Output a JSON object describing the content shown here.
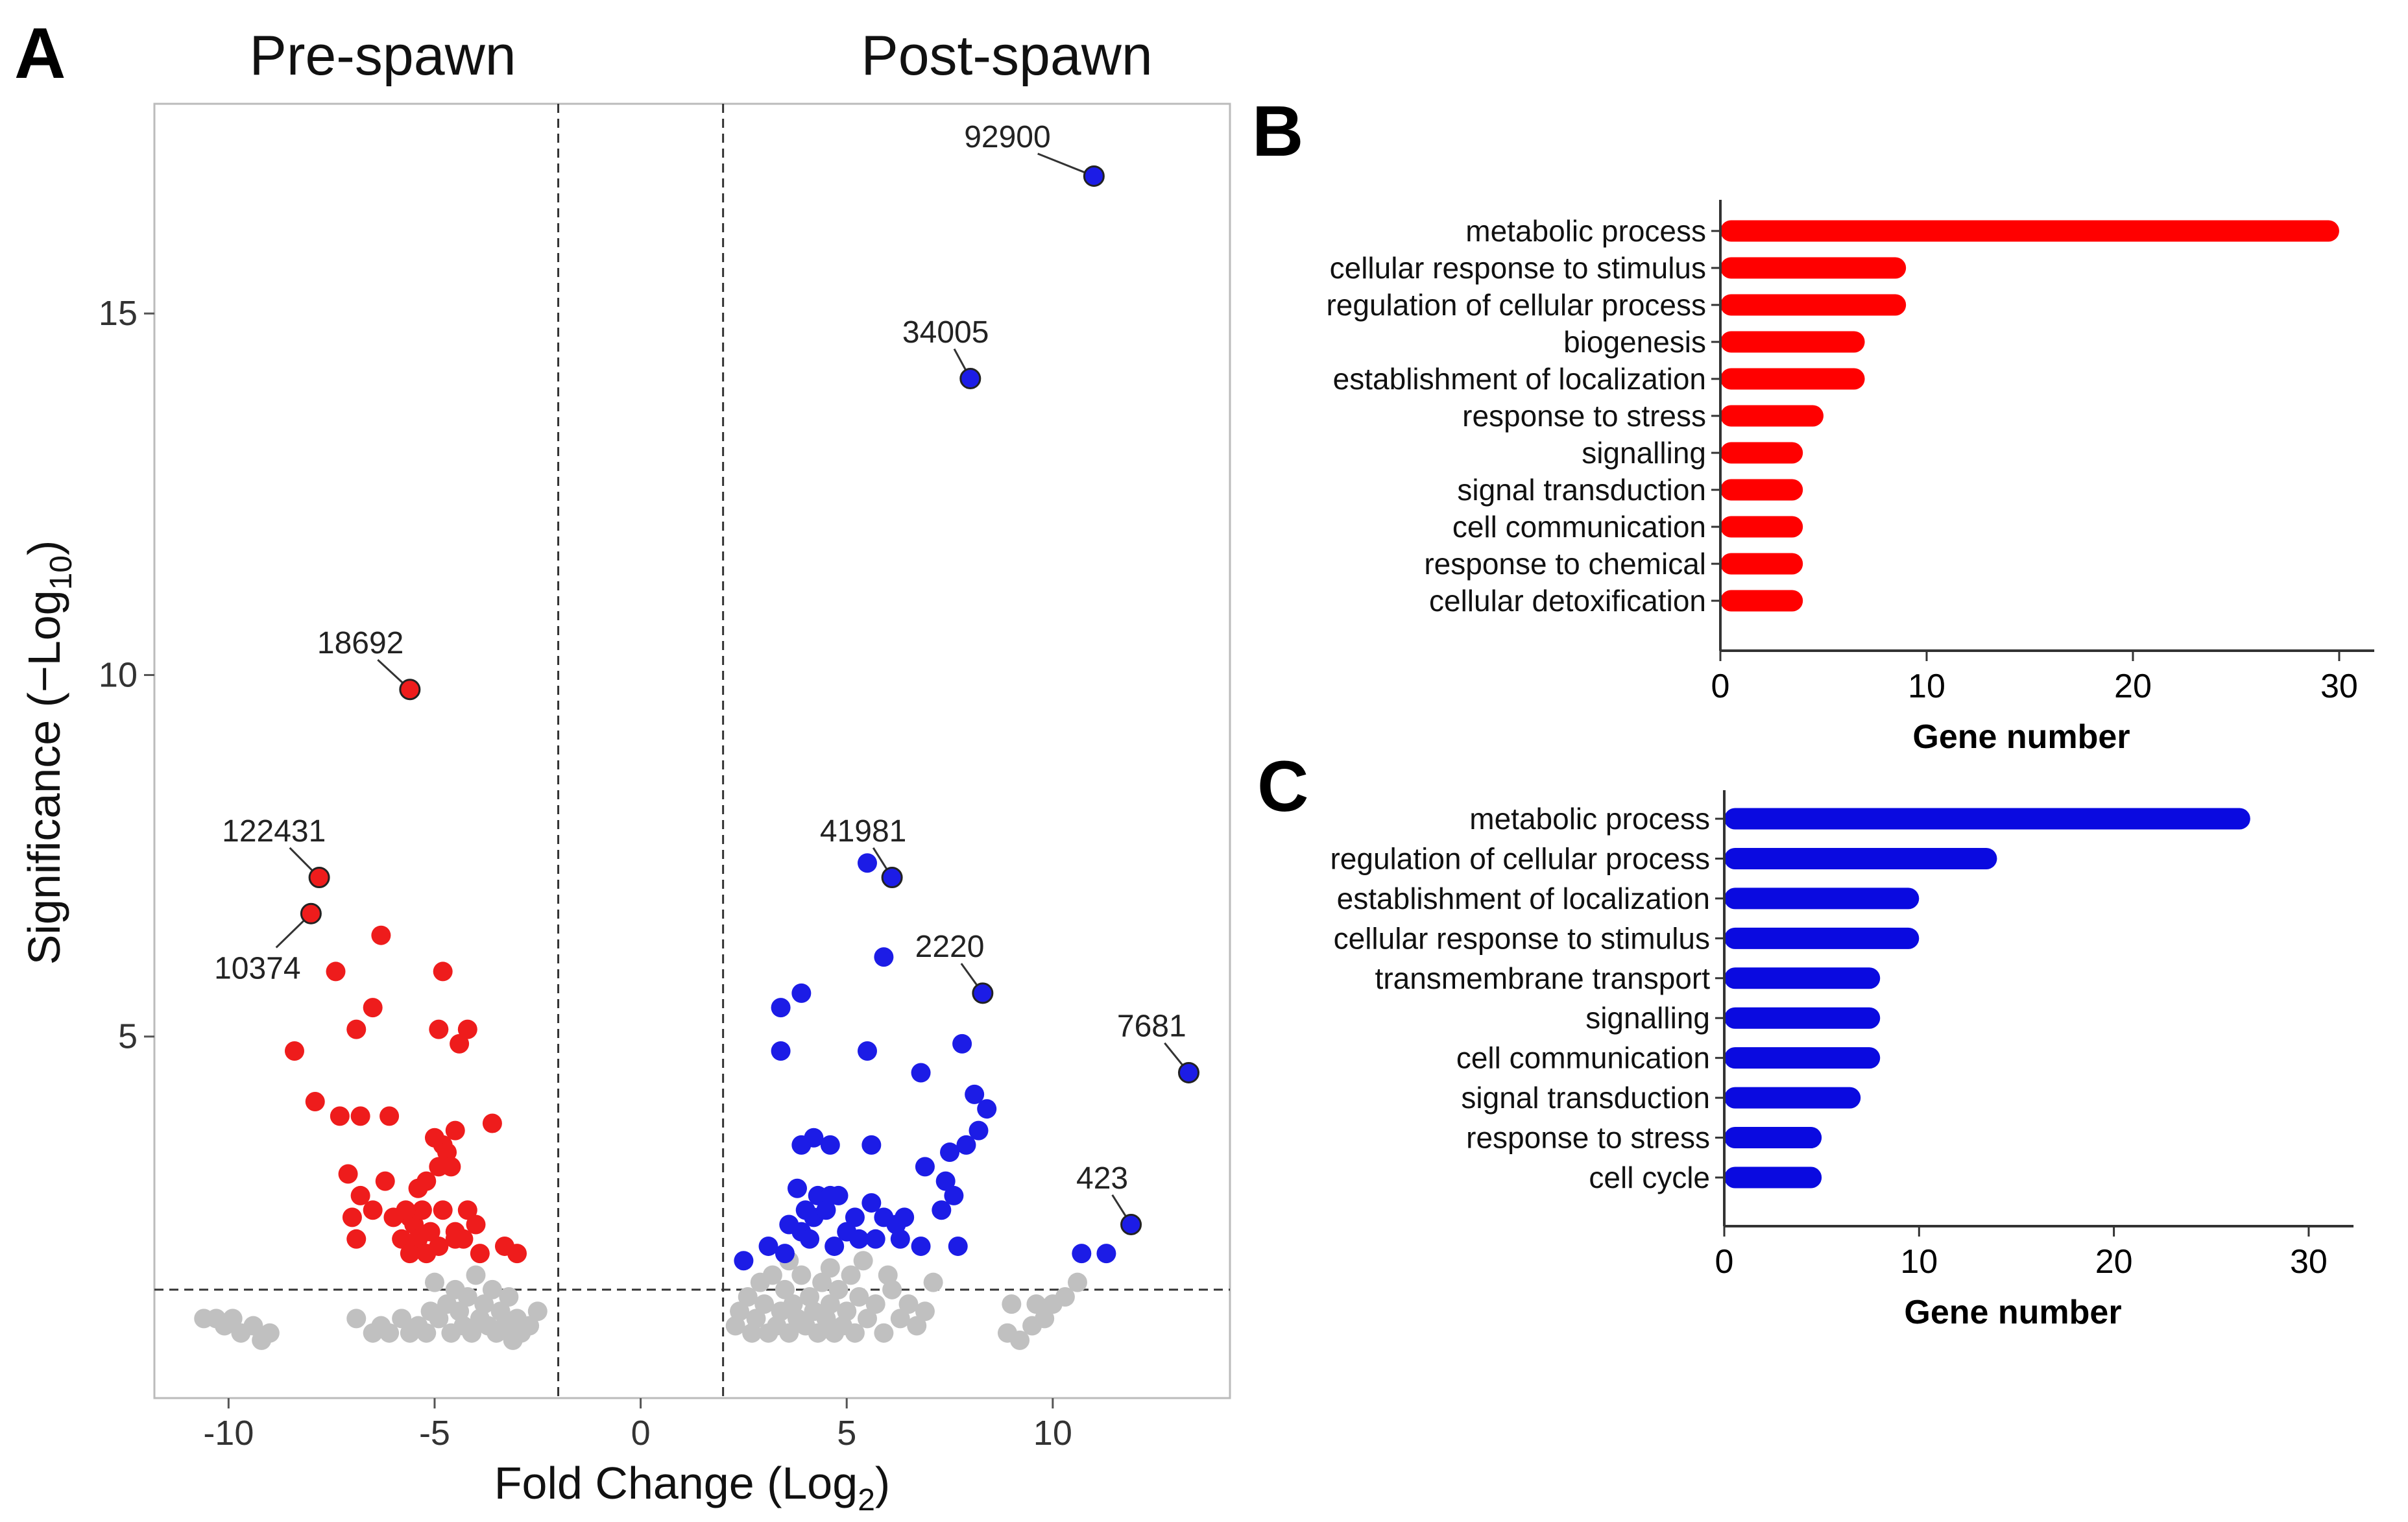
{
  "panel_labels": {
    "a": "A",
    "b": "B",
    "c": "C"
  },
  "colors": {
    "pre": "#ee1c1c",
    "post": "#1c1ce6",
    "ns": "#c0c0c0",
    "barB": "#ff0000",
    "barC": "#0a0ae0"
  },
  "chart_data": [
    {
      "type": "scatter",
      "panel": "A",
      "group_labels": {
        "left": "Pre-spawn",
        "right": "Post-spawn"
      },
      "xlabel_main": "Fold Change (Log",
      "xlabel_sub": "2",
      "xlabel_end": ")",
      "ylabel_main": "Significance (−Log",
      "ylabel_sub": "10",
      "ylabel_end": ")",
      "xlim": [
        -11.8,
        14.3
      ],
      "ylim": [
        0,
        17.9
      ],
      "xticks": [
        -10,
        -5,
        0,
        5,
        10
      ],
      "xtick_labels": [
        "-10",
        "-5",
        "0",
        "5",
        "10"
      ],
      "yticks": [
        5,
        10,
        15
      ],
      "ytick_labels": [
        "5",
        "10",
        "15"
      ],
      "fc_thresholds": [
        -2,
        2
      ],
      "sig_threshold": 1.5,
      "labeled_points": [
        {
          "id": "92900",
          "x": 11.0,
          "y": 16.9,
          "group": "post",
          "tx": 8.9,
          "ty": 17.3,
          "anchor": "middle"
        },
        {
          "id": "34005",
          "x": 8.0,
          "y": 14.1,
          "group": "post",
          "tx": 7.4,
          "ty": 14.6,
          "anchor": "middle"
        },
        {
          "id": "18692",
          "x": -5.6,
          "y": 9.8,
          "group": "pre",
          "tx": -6.8,
          "ty": 10.3,
          "anchor": "middle"
        },
        {
          "id": "122431",
          "x": -7.8,
          "y": 7.2,
          "group": "pre",
          "tx": -8.9,
          "ty": 7.7,
          "anchor": "middle"
        },
        {
          "id": "10374",
          "x": -8.0,
          "y": 6.7,
          "group": "pre",
          "tx": -9.3,
          "ty": 5.8,
          "anchor": "middle"
        },
        {
          "id": "41981",
          "x": 6.1,
          "y": 7.2,
          "group": "post",
          "tx": 5.4,
          "ty": 7.7,
          "anchor": "middle"
        },
        {
          "id": "2220",
          "x": 8.3,
          "y": 5.6,
          "group": "post",
          "tx": 7.5,
          "ty": 6.1,
          "anchor": "middle"
        },
        {
          "id": "7681",
          "x": 13.3,
          "y": 4.5,
          "group": "post",
          "tx": 12.4,
          "ty": 5.0,
          "anchor": "middle"
        },
        {
          "id": "423",
          "x": 11.9,
          "y": 2.4,
          "group": "post",
          "tx": 11.2,
          "ty": 2.9,
          "anchor": "middle"
        }
      ],
      "pre_points": [
        [
          -8.4,
          4.8
        ],
        [
          -7.9,
          4.1
        ],
        [
          -7.4,
          5.9
        ],
        [
          -6.9,
          5.1
        ],
        [
          -6.3,
          6.4
        ],
        [
          -6.5,
          5.4
        ],
        [
          -7.3,
          3.9
        ],
        [
          -6.8,
          3.9
        ],
        [
          -6.1,
          3.9
        ],
        [
          -7.1,
          3.1
        ],
        [
          -6.8,
          2.8
        ],
        [
          -6.5,
          2.6
        ],
        [
          -6.2,
          3.0
        ],
        [
          -7.0,
          2.5
        ],
        [
          -6.9,
          2.2
        ],
        [
          -5.6,
          2.5
        ],
        [
          -5.4,
          2.9
        ],
        [
          -5.0,
          3.6
        ],
        [
          -4.8,
          3.5
        ],
        [
          -4.7,
          3.4
        ],
        [
          -4.6,
          3.2
        ],
        [
          -4.5,
          3.7
        ],
        [
          -4.9,
          3.2
        ],
        [
          -4.8,
          5.9
        ],
        [
          -4.9,
          5.1
        ],
        [
          -4.4,
          4.9
        ],
        [
          -4.2,
          5.1
        ],
        [
          -3.6,
          3.8
        ],
        [
          -5.2,
          3.0
        ],
        [
          -5.5,
          2.4
        ],
        [
          -5.3,
          2.6
        ],
        [
          -5.7,
          2.6
        ],
        [
          -5.4,
          2.2
        ],
        [
          -5.1,
          2.3
        ],
        [
          -4.8,
          2.6
        ],
        [
          -4.5,
          2.3
        ],
        [
          -4.3,
          2.2
        ],
        [
          -4.2,
          2.6
        ],
        [
          -4.5,
          2.2
        ],
        [
          -3.9,
          2.0
        ],
        [
          -3.3,
          2.1
        ],
        [
          -3.0,
          2.0
        ],
        [
          -5.8,
          2.2
        ],
        [
          -6.0,
          2.5
        ],
        [
          -4.9,
          2.1
        ],
        [
          -5.6,
          2.0
        ],
        [
          -4.0,
          2.4
        ],
        [
          -5.2,
          2.0
        ]
      ],
      "post_points": [
        [
          3.4,
          5.4
        ],
        [
          3.9,
          5.6
        ],
        [
          3.4,
          4.8
        ],
        [
          5.9,
          6.1
        ],
        [
          5.5,
          7.4
        ],
        [
          5.5,
          4.8
        ],
        [
          6.8,
          4.5
        ],
        [
          7.8,
          4.9
        ],
        [
          8.1,
          4.2
        ],
        [
          8.4,
          4.0
        ],
        [
          6.9,
          3.2
        ],
        [
          7.5,
          3.4
        ],
        [
          7.4,
          3.0
        ],
        [
          7.9,
          3.5
        ],
        [
          8.2,
          3.7
        ],
        [
          3.9,
          3.5
        ],
        [
          4.2,
          3.6
        ],
        [
          4.6,
          3.5
        ],
        [
          5.6,
          3.5
        ],
        [
          3.8,
          2.9
        ],
        [
          4.3,
          2.8
        ],
        [
          4.6,
          2.8
        ],
        [
          4.8,
          2.8
        ],
        [
          5.6,
          2.7
        ],
        [
          6.4,
          2.5
        ],
        [
          7.3,
          2.6
        ],
        [
          7.6,
          2.8
        ],
        [
          4.0,
          2.6
        ],
        [
          4.2,
          2.5
        ],
        [
          4.5,
          2.6
        ],
        [
          5.2,
          2.5
        ],
        [
          5.9,
          2.5
        ],
        [
          6.2,
          2.4
        ],
        [
          3.6,
          2.4
        ],
        [
          3.9,
          2.3
        ],
        [
          4.1,
          2.2
        ],
        [
          5.0,
          2.3
        ],
        [
          5.3,
          2.2
        ],
        [
          6.3,
          2.2
        ],
        [
          6.8,
          2.1
        ],
        [
          3.1,
          2.1
        ],
        [
          3.5,
          2.0
        ],
        [
          2.5,
          1.9
        ],
        [
          4.7,
          2.1
        ],
        [
          5.7,
          2.2
        ],
        [
          7.7,
          2.1
        ],
        [
          10.7,
          2.0
        ],
        [
          11.3,
          2.0
        ]
      ],
      "ns_points": [
        [
          -10.6,
          1.1
        ],
        [
          -10.3,
          1.1
        ],
        [
          -10.1,
          1.0
        ],
        [
          -9.9,
          1.1
        ],
        [
          -9.7,
          0.9
        ],
        [
          -9.4,
          1.0
        ],
        [
          -9.2,
          0.8
        ],
        [
          -9.0,
          0.9
        ],
        [
          -6.9,
          1.1
        ],
        [
          -6.5,
          0.9
        ],
        [
          -6.3,
          1.0
        ],
        [
          -6.1,
          0.9
        ],
        [
          -5.8,
          1.1
        ],
        [
          -5.6,
          0.9
        ],
        [
          -5.4,
          1.0
        ],
        [
          -5.2,
          0.9
        ],
        [
          -5.1,
          1.2
        ],
        [
          -5.0,
          1.6
        ],
        [
          -4.9,
          1.1
        ],
        [
          -4.7,
          1.3
        ],
        [
          -4.6,
          0.9
        ],
        [
          -4.5,
          1.5
        ],
        [
          -4.4,
          1.2
        ],
        [
          -4.3,
          1.0
        ],
        [
          -4.2,
          1.4
        ],
        [
          -4.1,
          0.9
        ],
        [
          -4.0,
          1.7
        ],
        [
          -3.9,
          1.1
        ],
        [
          -3.8,
          1.3
        ],
        [
          -3.7,
          1.0
        ],
        [
          -3.6,
          1.5
        ],
        [
          -3.5,
          0.9
        ],
        [
          -3.4,
          1.2
        ],
        [
          -3.3,
          1.0
        ],
        [
          -3.2,
          1.4
        ],
        [
          -3.1,
          0.8
        ],
        [
          -3.0,
          1.1
        ],
        [
          -2.9,
          0.9
        ],
        [
          -2.7,
          1.0
        ],
        [
          -2.5,
          1.2
        ],
        [
          2.3,
          1.0
        ],
        [
          2.4,
          1.2
        ],
        [
          2.6,
          1.4
        ],
        [
          2.7,
          0.9
        ],
        [
          2.8,
          1.1
        ],
        [
          2.9,
          1.6
        ],
        [
          3.0,
          1.3
        ],
        [
          3.1,
          0.9
        ],
        [
          3.2,
          1.7
        ],
        [
          3.3,
          1.0
        ],
        [
          3.4,
          1.2
        ],
        [
          3.5,
          1.5
        ],
        [
          3.6,
          0.9
        ],
        [
          3.7,
          1.3
        ],
        [
          3.8,
          1.1
        ],
        [
          3.9,
          1.7
        ],
        [
          4.0,
          1.0
        ],
        [
          4.1,
          1.4
        ],
        [
          4.2,
          1.2
        ],
        [
          4.3,
          0.9
        ],
        [
          4.4,
          1.6
        ],
        [
          4.5,
          1.1
        ],
        [
          4.6,
          1.3
        ],
        [
          4.7,
          0.9
        ],
        [
          4.8,
          1.5
        ],
        [
          4.9,
          1.0
        ],
        [
          5.0,
          1.2
        ],
        [
          5.1,
          1.7
        ],
        [
          5.2,
          0.9
        ],
        [
          5.3,
          1.4
        ],
        [
          5.5,
          1.1
        ],
        [
          5.7,
          1.3
        ],
        [
          5.9,
          0.9
        ],
        [
          6.1,
          1.5
        ],
        [
          6.3,
          1.1
        ],
        [
          6.5,
          1.3
        ],
        [
          6.7,
          1.0
        ],
        [
          6.9,
          1.2
        ],
        [
          7.1,
          1.6
        ],
        [
          8.9,
          0.9
        ],
        [
          9.2,
          0.8
        ],
        [
          9.5,
          1.0
        ],
        [
          9.8,
          1.1
        ],
        [
          10.0,
          1.3
        ],
        [
          10.3,
          1.4
        ],
        [
          10.6,
          1.6
        ],
        [
          9.0,
          1.3
        ],
        [
          9.6,
          1.3
        ],
        [
          5.4,
          1.9
        ],
        [
          6.0,
          1.7
        ],
        [
          3.6,
          1.9
        ],
        [
          4.6,
          1.8
        ]
      ]
    },
    {
      "type": "bar",
      "panel": "B",
      "orientation": "horizontal",
      "categories": [
        "metabolic process",
        "cellular response to stimulus",
        "regulation of cellular process",
        "biogenesis",
        "establishment of localization",
        "response to stress",
        "signalling",
        "signal transduction",
        "cell communication",
        "response to chemical",
        "cellular detoxification"
      ],
      "values": [
        30,
        9,
        9,
        7,
        7,
        5,
        4,
        4,
        4,
        4,
        4
      ],
      "xlabel": "Gene number",
      "xlim": [
        0,
        31.7
      ],
      "xticks": [
        0,
        10,
        20,
        30
      ],
      "xtick_labels": [
        "0",
        "10",
        "20",
        "30"
      ]
    },
    {
      "type": "bar",
      "panel": "C",
      "orientation": "horizontal",
      "categories": [
        "metabolic process",
        "regulation of cellular process",
        "establishment of localization",
        "cellular response to stimulus",
        "transmembrane transport",
        "signalling",
        "cell communication",
        "signal transduction",
        "response to stress",
        "cell cycle"
      ],
      "values": [
        27,
        14,
        10,
        10,
        8,
        8,
        8,
        7,
        5,
        5
      ],
      "xlabel": "Gene number",
      "xlim": [
        0,
        32.3
      ],
      "xticks": [
        0,
        10,
        20,
        30
      ],
      "xtick_labels": [
        "0",
        "10",
        "20",
        "30"
      ]
    }
  ]
}
